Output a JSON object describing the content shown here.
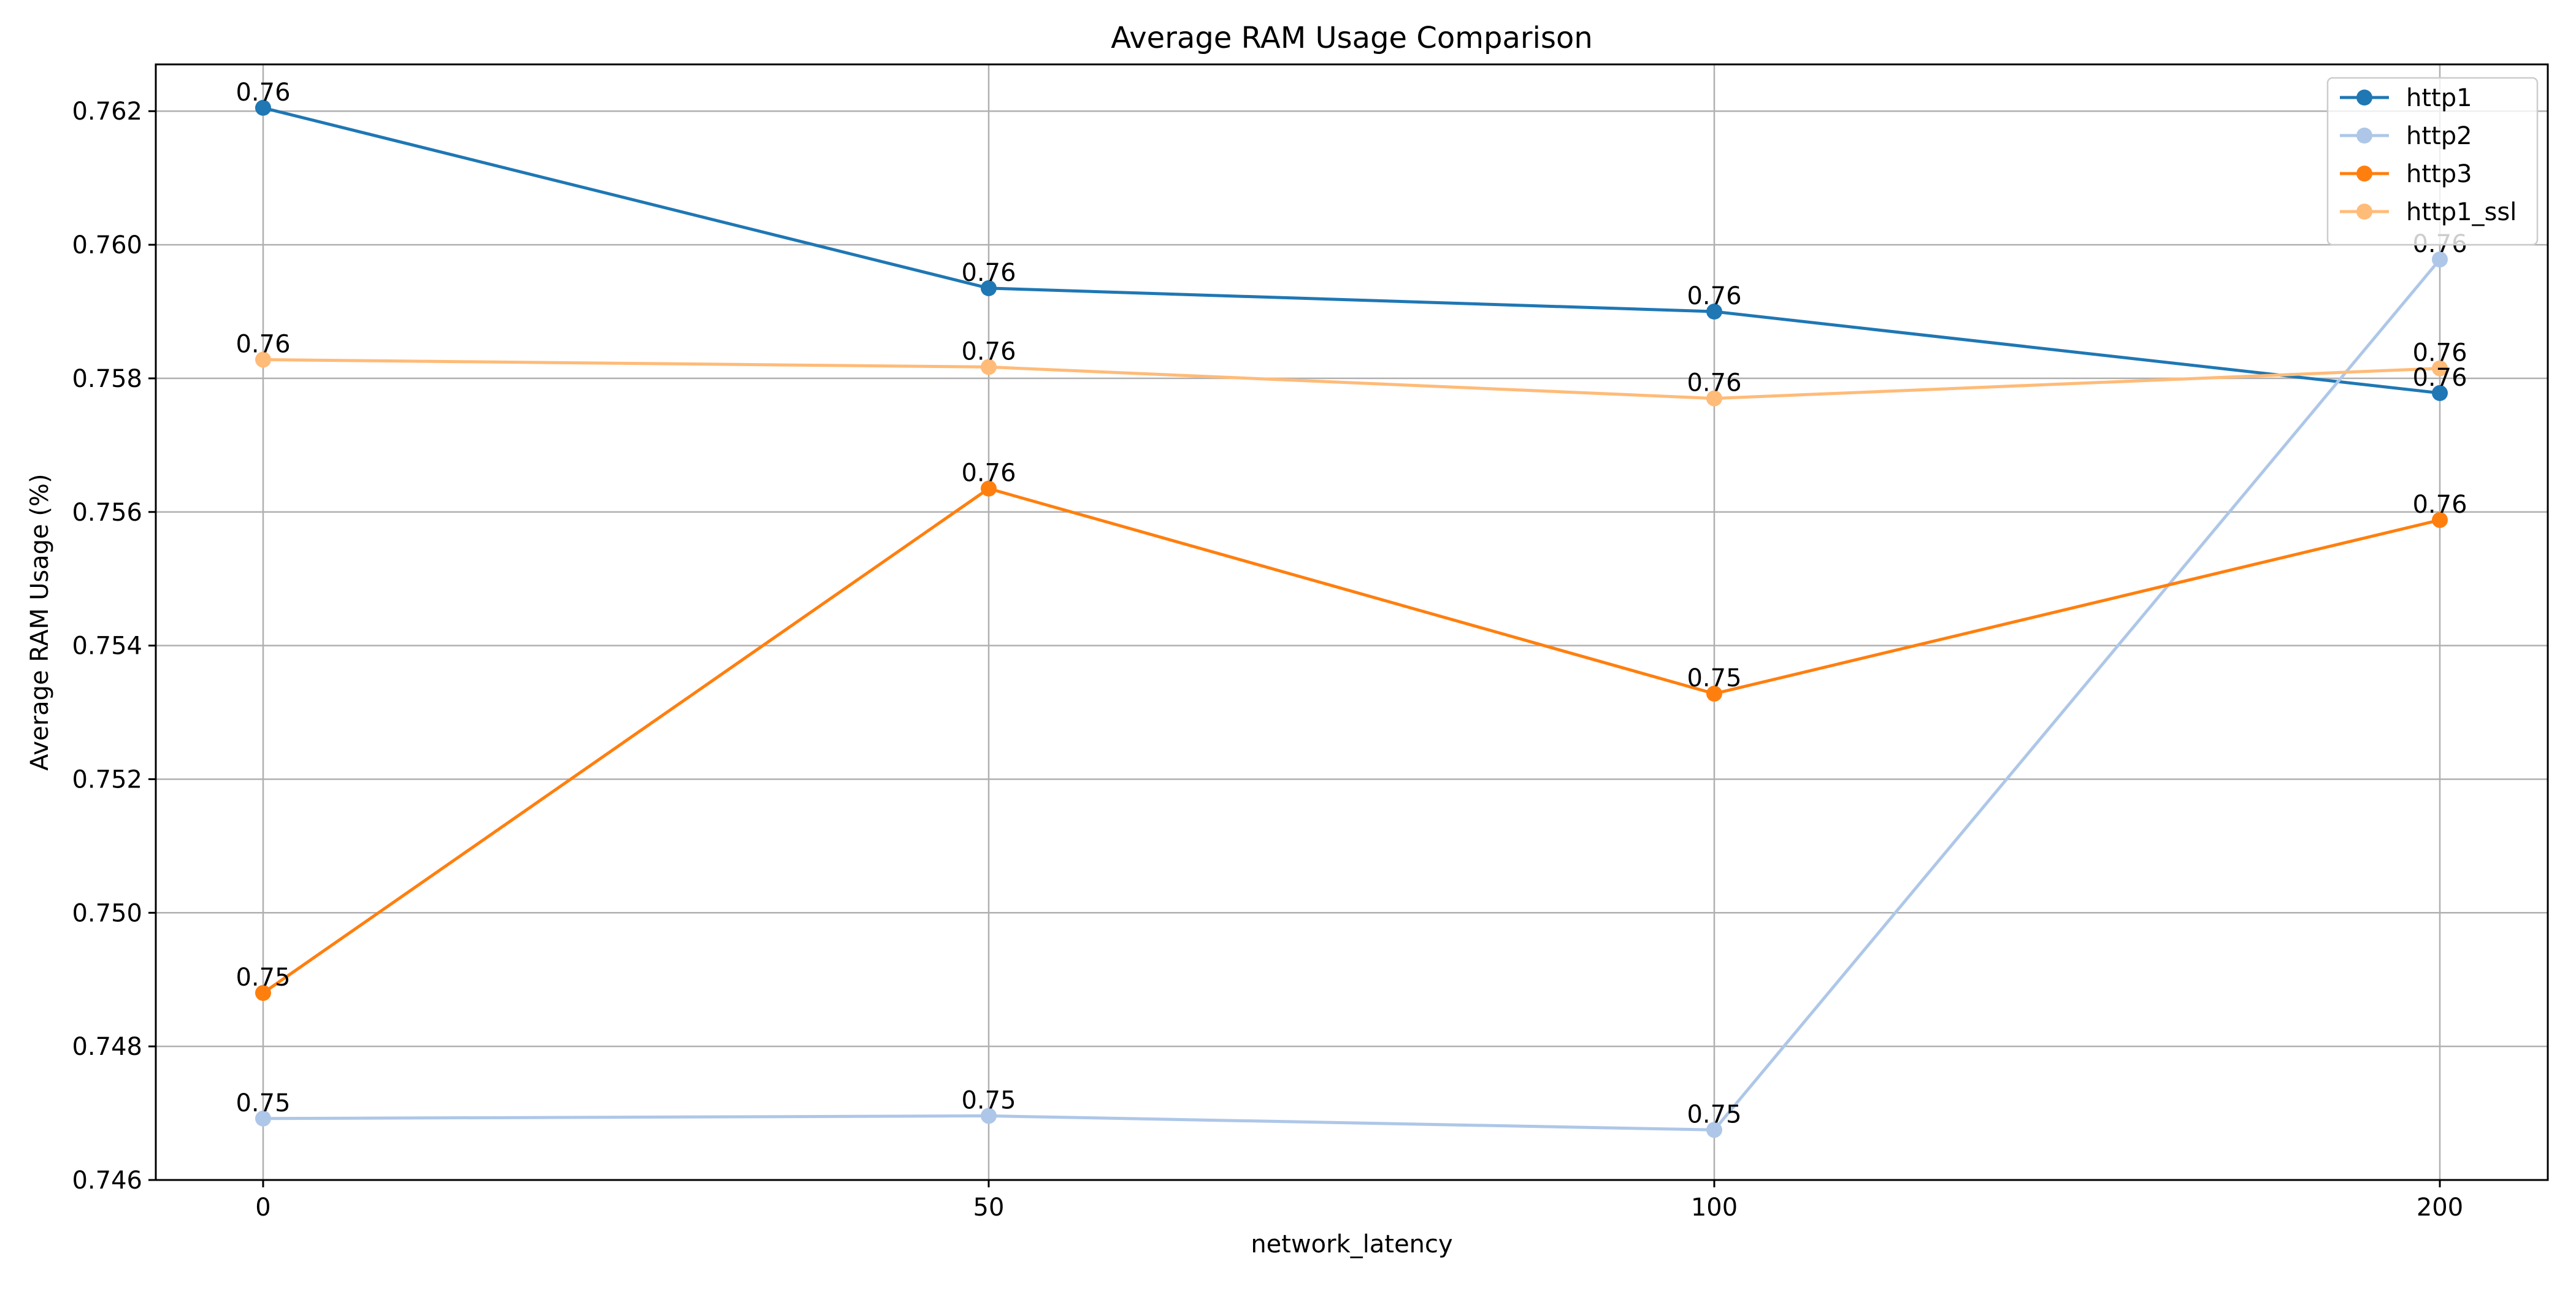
{
  "chart_data": {
    "type": "line",
    "title": "Average RAM Usage Comparison",
    "xlabel": "network_latency",
    "ylabel": "Average RAM Usage (%)",
    "categories": [
      "0",
      "50",
      "100",
      "200"
    ],
    "ylim": [
      0.746,
      0.7627
    ],
    "yticks": [
      0.746,
      0.748,
      0.75,
      0.752,
      0.754,
      0.756,
      0.758,
      0.76,
      0.762
    ],
    "ytick_labels": [
      "0.746",
      "0.748",
      "0.750",
      "0.752",
      "0.754",
      "0.756",
      "0.758",
      "0.760",
      "0.762"
    ],
    "grid": true,
    "legend_position": "top-right",
    "series": [
      {
        "name": "http1",
        "color": "#1f77b4",
        "values": [
          0.76205,
          0.75935,
          0.759,
          0.75778
        ],
        "labels": [
          "0.76",
          "0.76",
          "0.76",
          "0.76"
        ]
      },
      {
        "name": "http2",
        "color": "#aec7e8",
        "values": [
          0.74692,
          0.74696,
          0.74675,
          0.75978
        ],
        "labels": [
          "0.75",
          "0.75",
          "0.75",
          "0.76"
        ]
      },
      {
        "name": "http3",
        "color": "#ff7f0e",
        "values": [
          0.7488,
          0.75635,
          0.75328,
          0.75588
        ],
        "labels": [
          "0.75",
          "0.76",
          "0.75",
          "0.76"
        ]
      },
      {
        "name": "http1_ssl",
        "color": "#ffbb78",
        "values": [
          0.75828,
          0.75817,
          0.7577,
          0.75815
        ],
        "labels": [
          "0.76",
          "0.76",
          "0.76",
          "0.76"
        ]
      }
    ]
  }
}
